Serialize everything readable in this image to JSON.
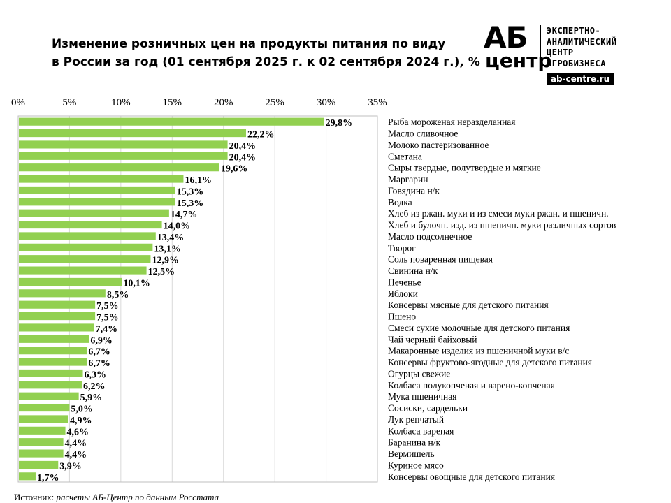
{
  "title": {
    "line1": "Изменение розничных цен на продукты питания по виду",
    "line2": "в России за год (01 сентября 2025 г. к 02 сентября 2024 г.), %"
  },
  "logo": {
    "big": "АБ",
    "small": "центр",
    "text_lines": [
      "ЭКСПЕРТНО-",
      "АНАЛИТИЧЕСКИЙ",
      "ЦЕНТР",
      "АГРОБИЗНЕСА"
    ],
    "url": "ab-centre.ru"
  },
  "source": {
    "label": "Источник:",
    "text": "расчеты АБ-Центр по данным Росстата"
  },
  "chart_data": {
    "type": "bar",
    "orientation": "horizontal",
    "bar_color": "#92d050",
    "xlim": [
      0,
      35
    ],
    "x_tick_labels": [
      "0%",
      "5%",
      "10%",
      "15%",
      "20%",
      "25%",
      "30%",
      "35%"
    ],
    "x_axis_position": "top",
    "grid": true,
    "categories": [
      "Рыба мороженая неразделанная",
      "Масло сливочное",
      "Молоко пастеризованное",
      "Сметана",
      "Сыры твердые, полутвердые и мягкие",
      "Маргарин",
      "Говядина н/к",
      "Водка",
      "Хлеб из ржан. муки и из смеси муки ржан. и пшеничн.",
      "Хлеб и булочн. изд. из пшеничн. муки различных сортов",
      "Масло подсолнечное",
      "Творог",
      "Соль поваренная пищевая",
      "Свинина н/к",
      "Печенье",
      "Яблоки",
      "Консервы мясные для детского питания",
      "Пшено",
      "Смеси сухие молочные для детского питания",
      "Чай черный байховый",
      "Макаронные изделия из пшеничной муки в/с",
      "Консервы фруктово-ягодные для детского питания",
      "Огурцы свежие",
      "Колбаса полукопченая и варено-копченая",
      "Мука пшеничная",
      "Сосиски, сардельки",
      "Лук репчатый",
      "Колбаса вареная",
      "Баранина н/к",
      "Вермишель",
      "Куриное мясо",
      "Консервы овощные для детского питания"
    ],
    "values": [
      29.8,
      22.2,
      20.4,
      20.4,
      19.6,
      16.1,
      15.3,
      15.3,
      14.7,
      14.0,
      13.4,
      13.1,
      12.9,
      12.5,
      10.1,
      8.5,
      7.5,
      7.5,
      7.4,
      6.9,
      6.7,
      6.7,
      6.3,
      6.2,
      5.9,
      5.0,
      4.9,
      4.6,
      4.4,
      4.4,
      3.9,
      1.7
    ],
    "value_labels": [
      "29,8%",
      "22,2%",
      "20,4%",
      "20,4%",
      "19,6%",
      "16,1%",
      "15,3%",
      "15,3%",
      "14,7%",
      "14,0%",
      "13,4%",
      "13,1%",
      "12,9%",
      "12,5%",
      "10,1%",
      "8,5%",
      "7,5%",
      "7,5%",
      "7,4%",
      "6,9%",
      "6,7%",
      "6,7%",
      "6,3%",
      "6,2%",
      "5,9%",
      "5,0%",
      "4,9%",
      "4,6%",
      "4,4%",
      "4,4%",
      "3,9%",
      "1,7%"
    ]
  }
}
